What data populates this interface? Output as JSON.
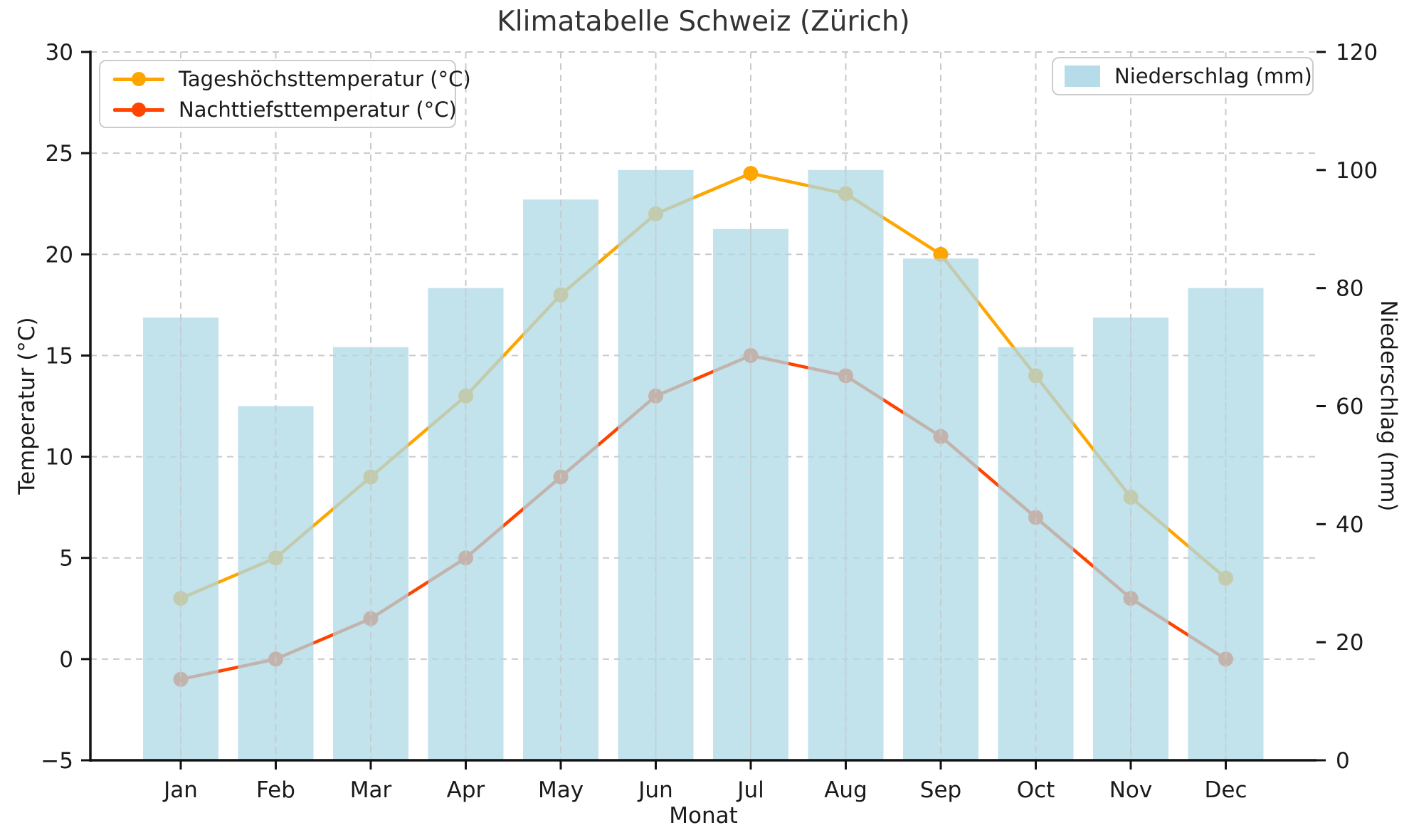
{
  "title": "Klimatabelle Schweiz (Zürich)",
  "axes": {
    "x_label": "Monat",
    "y_left_label": "Temperatur (°C)",
    "y_right_label": "Niederschlag (mm)",
    "y_left_tick_labels": [
      "30",
      "25",
      "20",
      "15",
      "10",
      "5",
      "0",
      "−5"
    ],
    "y_left_tick_values": [
      30,
      25,
      20,
      15,
      10,
      5,
      0,
      -5
    ],
    "y_right_tick_labels": [
      "120",
      "100",
      "80",
      "60",
      "40",
      "20",
      "0"
    ],
    "y_right_tick_values": [
      120,
      100,
      80,
      60,
      40,
      20,
      0
    ]
  },
  "legend_left": {
    "items": [
      {
        "label": "Tageshöchsttemperatur (°C)",
        "color": "#FFA500"
      },
      {
        "label": "Nachttiefsttemperatur (°C)",
        "color": "#FF4500"
      }
    ]
  },
  "legend_right": {
    "items": [
      {
        "label": "Niederschlag (mm)",
        "color": "#ADD8E6"
      }
    ]
  },
  "chart_data": {
    "type": "bar+line",
    "title": "Klimatabelle Schweiz (Zürich)",
    "xlabel": "Monat",
    "ylabel_left": "Temperatur (°C)",
    "ylabel_right": "Niederschlag (mm)",
    "categories": [
      "Jan",
      "Feb",
      "Mar",
      "Apr",
      "May",
      "Jun",
      "Jul",
      "Aug",
      "Sep",
      "Oct",
      "Nov",
      "Dec"
    ],
    "series": [
      {
        "name": "Tageshöchsttemperatur (°C)",
        "type": "line",
        "axis": "left",
        "color": "#FFA500",
        "values": [
          3,
          5,
          9,
          13,
          18,
          22,
          24,
          23,
          20,
          14,
          8,
          4
        ]
      },
      {
        "name": "Nachttiefsttemperatur (°C)",
        "type": "line",
        "axis": "left",
        "color": "#FF4500",
        "values": [
          -1,
          0,
          2,
          5,
          9,
          13,
          15,
          14,
          11,
          7,
          3,
          0
        ]
      },
      {
        "name": "Niederschlag (mm)",
        "type": "bar",
        "axis": "right",
        "color": "#ADD8E6",
        "bar_alpha": 0.75,
        "values": [
          75,
          60,
          70,
          80,
          95,
          100,
          90,
          100,
          85,
          70,
          75,
          80
        ]
      }
    ],
    "ylim_left": [
      -5,
      30
    ],
    "ylim_right": [
      0,
      120
    ],
    "grid": true,
    "grid_style": "dashed",
    "legend_positions": [
      "upper left",
      "upper right"
    ]
  }
}
